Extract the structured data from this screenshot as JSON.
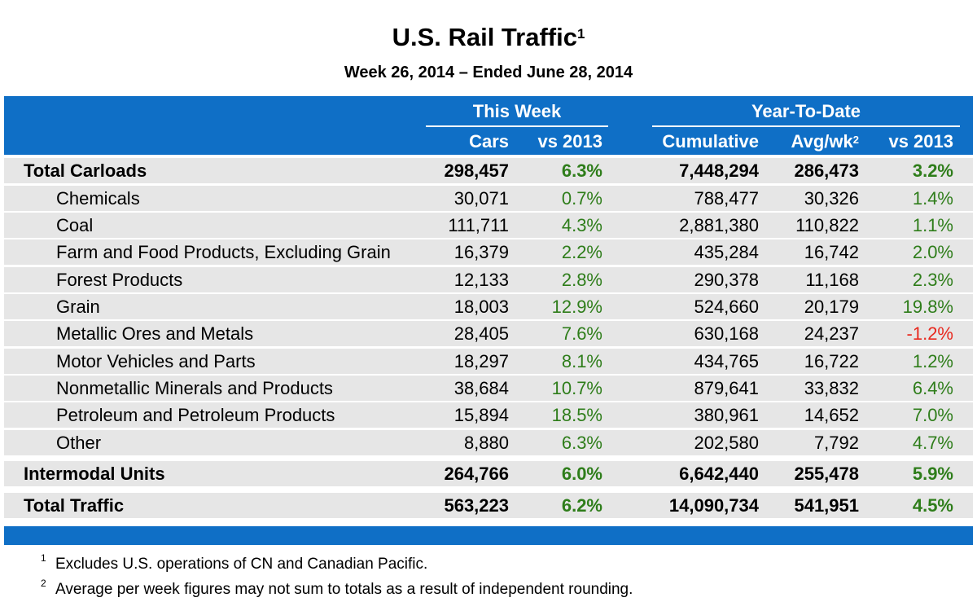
{
  "title": "U.S. Rail Traffic",
  "title_footnote": "1",
  "subtitle": "Week 26, 2014 – Ended June 28, 2014",
  "header": {
    "group_this_week": "This Week",
    "group_ytd": "Year-To-Date",
    "col_cars": "Cars",
    "col_vs2013_week": "vs 2013",
    "col_cumulative": "Cumulative",
    "col_avgwk": "Avg/wk",
    "col_avgwk_footnote": "2",
    "col_vs2013_ytd": "vs 2013"
  },
  "rows": [
    {
      "label": "Total Carloads",
      "cars": "298,457",
      "vs_week": "6.3%",
      "cumulative": "7,448,294",
      "avg": "286,473",
      "vs_ytd": "3.2%"
    },
    {
      "label": "Chemicals",
      "cars": "30,071",
      "vs_week": "0.7%",
      "cumulative": "788,477",
      "avg": "30,326",
      "vs_ytd": "1.4%"
    },
    {
      "label": "Coal",
      "cars": "111,711",
      "vs_week": "4.3%",
      "cumulative": "2,881,380",
      "avg": "110,822",
      "vs_ytd": "1.1%"
    },
    {
      "label": "Farm and Food Products, Excluding Grain",
      "cars": "16,379",
      "vs_week": "2.2%",
      "cumulative": "435,284",
      "avg": "16,742",
      "vs_ytd": "2.0%"
    },
    {
      "label": "Forest Products",
      "cars": "12,133",
      "vs_week": "2.8%",
      "cumulative": "290,378",
      "avg": "11,168",
      "vs_ytd": "2.3%"
    },
    {
      "label": "Grain",
      "cars": "18,003",
      "vs_week": "12.9%",
      "cumulative": "524,660",
      "avg": "20,179",
      "vs_ytd": "19.8%"
    },
    {
      "label": "Metallic Ores and Metals",
      "cars": "28,405",
      "vs_week": "7.6%",
      "cumulative": "630,168",
      "avg": "24,237",
      "vs_ytd": "-1.2%"
    },
    {
      "label": "Motor Vehicles and Parts",
      "cars": "18,297",
      "vs_week": "8.1%",
      "cumulative": "434,765",
      "avg": "16,722",
      "vs_ytd": "1.2%"
    },
    {
      "label": "Nonmetallic Minerals and Products",
      "cars": "38,684",
      "vs_week": "10.7%",
      "cumulative": "879,641",
      "avg": "33,832",
      "vs_ytd": "6.4%"
    },
    {
      "label": "Petroleum and Petroleum Products",
      "cars": "15,894",
      "vs_week": "18.5%",
      "cumulative": "380,961",
      "avg": "14,652",
      "vs_ytd": "7.0%"
    },
    {
      "label": "Other",
      "cars": "8,880",
      "vs_week": "6.3%",
      "cumulative": "202,580",
      "avg": "7,792",
      "vs_ytd": "4.7%"
    },
    {
      "label": "Intermodal Units",
      "cars": "264,766",
      "vs_week": "6.0%",
      "cumulative": "6,642,440",
      "avg": "255,478",
      "vs_ytd": "5.9%"
    },
    {
      "label": "Total Traffic",
      "cars": "563,223",
      "vs_week": "6.2%",
      "cumulative": "14,090,734",
      "avg": "541,951",
      "vs_ytd": "4.5%"
    }
  ],
  "footnotes": [
    {
      "mark": "1",
      "text": "Excludes U.S. operations of CN and Canadian Pacific."
    },
    {
      "mark": "2",
      "text": "Average per week figures may not sum to totals as a result of independent rounding."
    }
  ],
  "colors": {
    "header_band": "#0f6fc6",
    "row_background": "#e6e6e6",
    "positive": "#2e7d1a",
    "negative": "#e8281e"
  }
}
